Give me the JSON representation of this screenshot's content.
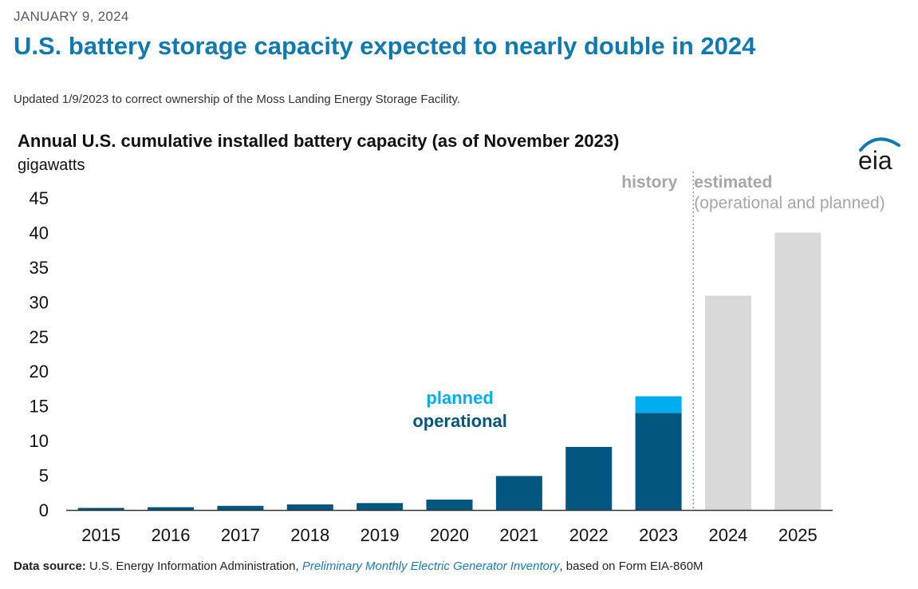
{
  "header": {
    "date": "JANUARY 9, 2024",
    "headline": "U.S. battery storage capacity expected to nearly double in 2024",
    "update_note": "Updated 1/9/2023 to correct ownership of the Moss Landing Energy Storage Facility."
  },
  "logo": {
    "text": "eia",
    "icon": "eia-logo"
  },
  "source": {
    "label": "Data source:",
    "text_before": "U.S. Energy Information Administration, ",
    "link_text": "Preliminary Monthly Electric Generator Inventory",
    "text_after": ", based on Form EIA-860M"
  },
  "colors": {
    "operational": "#02567f",
    "planned": "#00aeef",
    "estimated": "#d9d9d9",
    "headline": "#0f7ab0",
    "annotation_gray": "#a6a6a6"
  },
  "chart_data": {
    "type": "bar",
    "title": "Annual U.S. cumulative installed battery capacity (as of November 2023)",
    "ylabel": "gigawatts",
    "ylim": [
      0,
      45
    ],
    "yticks": [
      0,
      5,
      10,
      15,
      20,
      25,
      30,
      35,
      40,
      45
    ],
    "grid": false,
    "categories": [
      "2015",
      "2016",
      "2017",
      "2018",
      "2019",
      "2020",
      "2021",
      "2022",
      "2023",
      "2024",
      "2025"
    ],
    "series": [
      {
        "name": "operational",
        "values": [
          0.3,
          0.4,
          0.6,
          0.8,
          1.0,
          1.5,
          4.9,
          9.1,
          14.0,
          null,
          null
        ]
      },
      {
        "name": "planned",
        "values": [
          0,
          0,
          0,
          0,
          0,
          0,
          0,
          0,
          2.4,
          null,
          null
        ]
      },
      {
        "name": "estimated (operational and planned)",
        "values": [
          null,
          null,
          null,
          null,
          null,
          null,
          null,
          null,
          null,
          30.9,
          40.0
        ]
      }
    ],
    "annotations": {
      "history": "history",
      "estimated": "estimated",
      "estimated_sub": "(operational and planned)",
      "legend_planned": "planned",
      "legend_operational": "operational"
    }
  }
}
